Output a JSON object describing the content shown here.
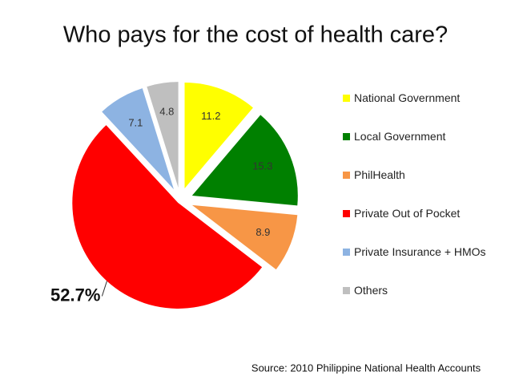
{
  "chart_data": {
    "type": "pie",
    "title": "Who pays for the cost of health care?",
    "categories": [
      "National Government",
      "Local Government",
      "PhilHealth",
      "Private Out of Pocket",
      "Private Insurance + HMOs",
      "Others"
    ],
    "values": [
      11.2,
      15.3,
      8.9,
      52.7,
      7.1,
      4.8
    ],
    "value_labels": [
      "11.2",
      "15.3",
      "8.9",
      "52.7%",
      "7.1",
      "4.8"
    ],
    "colors": [
      "#ffff00",
      "#008000",
      "#f79646",
      "#ff0000",
      "#8db3e2",
      "#bfbfbf"
    ],
    "legend": "right",
    "source": "Source: 2010 Philippine National Health Accounts"
  }
}
